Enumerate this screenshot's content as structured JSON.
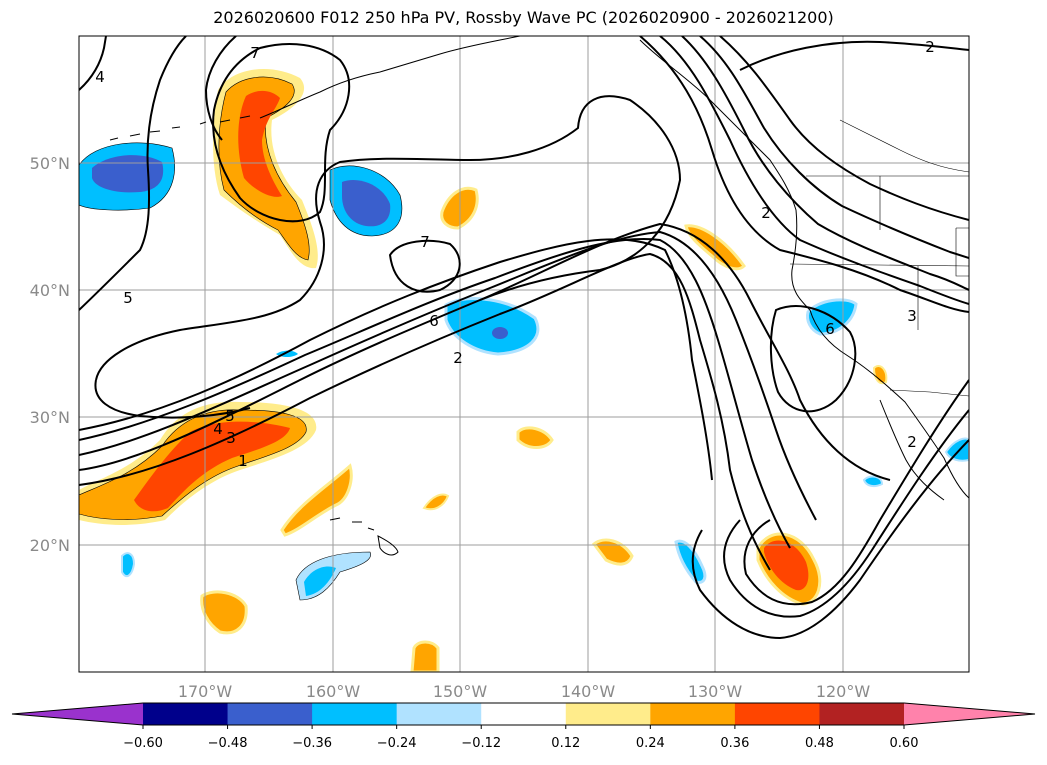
{
  "title": "2026020600 F012 250 hPa PV, Rossby Wave PC (2026020900 - 2026021200)",
  "map": {
    "lon_labels": [
      "170°W",
      "160°W",
      "150°W",
      "140°W",
      "130°W",
      "120°W"
    ],
    "lat_labels": [
      "50°N",
      "40°N",
      "30°N",
      "20°N"
    ],
    "lon_values": [
      -170,
      -160,
      -150,
      -140,
      -130,
      -120
    ],
    "lat_values": [
      50,
      40,
      30,
      20
    ],
    "extent": {
      "lon_min": -180,
      "lon_max": -110,
      "lat_min": 10,
      "lat_max": 60
    },
    "gridlines": true,
    "contour_labels": [
      "7",
      "4",
      "5",
      "7",
      "6",
      "2",
      "5",
      "4",
      "3",
      "1",
      "2",
      "2",
      "6",
      "3",
      "2"
    ]
  },
  "colorbar": {
    "tick_labels": [
      "−0.60",
      "−0.48",
      "−0.36",
      "−0.24",
      "−0.12",
      "0.12",
      "0.24",
      "0.36",
      "0.48",
      "0.60"
    ],
    "levels": [
      -0.6,
      -0.48,
      -0.36,
      -0.24,
      -0.12,
      0.12,
      0.24,
      0.36,
      0.48,
      0.6
    ],
    "colors": [
      "#9a32cd",
      "#00008b",
      "#3a5fcd",
      "#00bfff",
      "#b0e2ff",
      "#ffffff",
      "#ffec8b",
      "#ffa500",
      "#ff4500",
      "#b22222",
      "#ff82ab"
    ],
    "extend": "both"
  },
  "colors": {
    "grid": "#9e9e9e",
    "contour": "#000000"
  }
}
